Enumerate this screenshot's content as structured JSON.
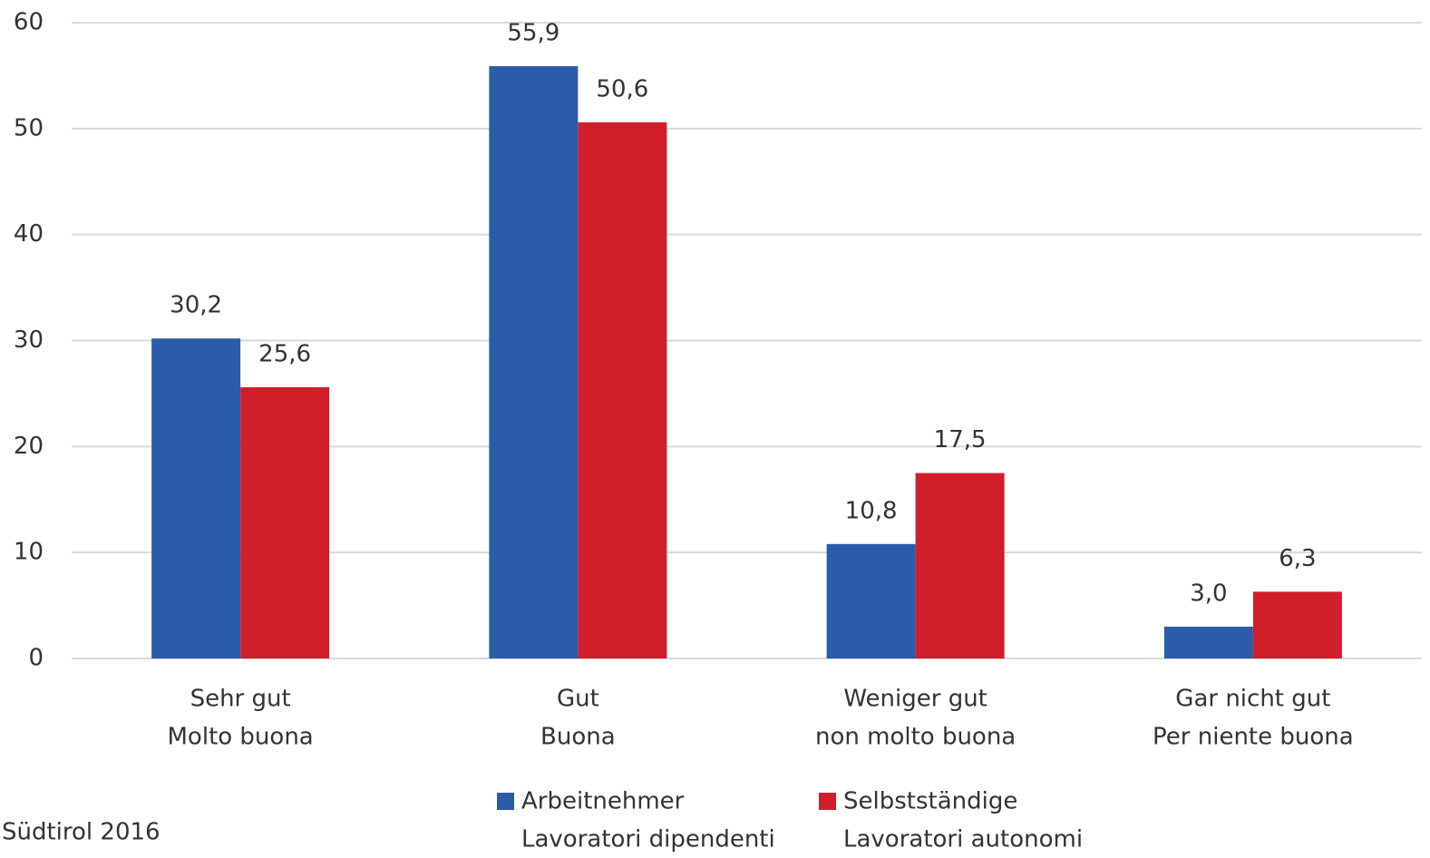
{
  "chart_data": {
    "type": "bar",
    "categories": [
      [
        "Sehr gut",
        "Molto buona"
      ],
      [
        "Gut",
        "Buona"
      ],
      [
        "Weniger gut",
        "non molto buona"
      ],
      [
        "Gar nicht gut",
        "Per niente buona"
      ]
    ],
    "series": [
      {
        "name": [
          "Arbeitnehmer",
          "Lavoratori dipendenti"
        ],
        "color": "#2b5ca9",
        "values": [
          30.2,
          55.9,
          10.8,
          3.0
        ],
        "value_labels": [
          "30,2",
          "55,9",
          "10,8",
          "3,0"
        ]
      },
      {
        "name": [
          "Selbstständige",
          "Lavoratori autonomi"
        ],
        "color": "#d01f2b",
        "values": [
          25.6,
          50.6,
          17.5,
          6.3
        ],
        "value_labels": [
          "25,6",
          "50,6",
          "17,5",
          "6,3"
        ]
      }
    ],
    "ylim": [
      0,
      60
    ],
    "yticks": [
      0,
      10,
      20,
      30,
      40,
      50,
      60
    ],
    "grid": true,
    "note": "Südtirol 2016"
  }
}
